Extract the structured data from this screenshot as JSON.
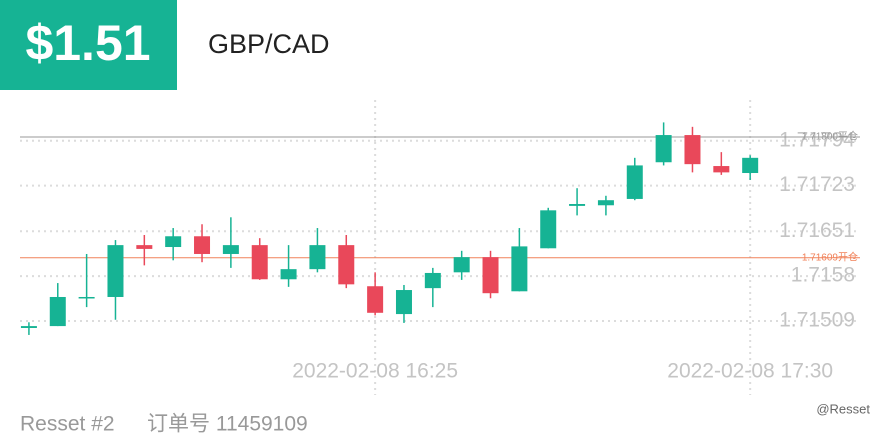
{
  "header": {
    "price": "$1.51",
    "symbol": "GBP/CAD"
  },
  "footer": {
    "account": "Resset #2",
    "order": "订单号 11459109",
    "watermark": "@Resset"
  },
  "chart_data": {
    "type": "candlestick",
    "categories": [
      null,
      null,
      null,
      null,
      null,
      null,
      null,
      null,
      null,
      null,
      null,
      null,
      "2022-02-08 16:25",
      null,
      null,
      null,
      null,
      null,
      null,
      null,
      null,
      null,
      null,
      null,
      null,
      "2022-02-08 17:30"
    ],
    "open": [
      1.71498,
      1.71501,
      1.71546,
      1.71547,
      1.71629,
      1.71626,
      1.71643,
      1.71615,
      1.71629,
      1.71575,
      1.71591,
      1.71629,
      1.71564,
      1.7152,
      1.71561,
      1.71586,
      1.7161,
      1.71556,
      1.71624,
      1.71691,
      1.71692,
      1.71702,
      1.7176,
      1.71803,
      1.71754,
      1.71743
    ],
    "high": [
      1.71507,
      1.71569,
      1.71615,
      1.71637,
      1.71645,
      1.71656,
      1.71662,
      1.71673,
      1.7164,
      1.71629,
      1.71656,
      1.71645,
      1.71586,
      1.71566,
      1.71593,
      1.7162,
      1.7162,
      1.71656,
      1.71688,
      1.71719,
      1.71707,
      1.71767,
      1.71823,
      1.71816,
      1.71776,
      1.71771
    ],
    "low": [
      1.71487,
      1.71501,
      1.71531,
      1.71511,
      1.71597,
      1.71605,
      1.71602,
      1.71593,
      1.71574,
      1.71563,
      1.71586,
      1.71561,
      1.71518,
      1.71506,
      1.71531,
      1.71574,
      1.71545,
      1.71556,
      1.71624,
      1.71676,
      1.71676,
      1.717,
      1.71755,
      1.71744,
      1.7174,
      1.71732
    ],
    "close": [
      1.71501,
      1.71547,
      1.71547,
      1.71629,
      1.71623,
      1.71643,
      1.71615,
      1.71629,
      1.71575,
      1.71591,
      1.71629,
      1.71567,
      1.71522,
      1.71558,
      1.71585,
      1.7161,
      1.71553,
      1.71627,
      1.71684,
      1.71694,
      1.717,
      1.71755,
      1.71803,
      1.71757,
      1.71744,
      1.71767
    ],
    "up_color": "#16b394",
    "down_color": "#e9485a",
    "ylim": [
      1.7143,
      1.7186
    ],
    "yticks": [
      1.71509,
      1.7158,
      1.71651,
      1.71723,
      1.71794
    ],
    "grid": true,
    "lines": [
      {
        "value": 1.718,
        "label": "1.71800平仓",
        "color": "#9a9a9a"
      },
      {
        "value": 1.71609,
        "label": "1.71609开仓",
        "color": "#f0825a"
      }
    ]
  }
}
